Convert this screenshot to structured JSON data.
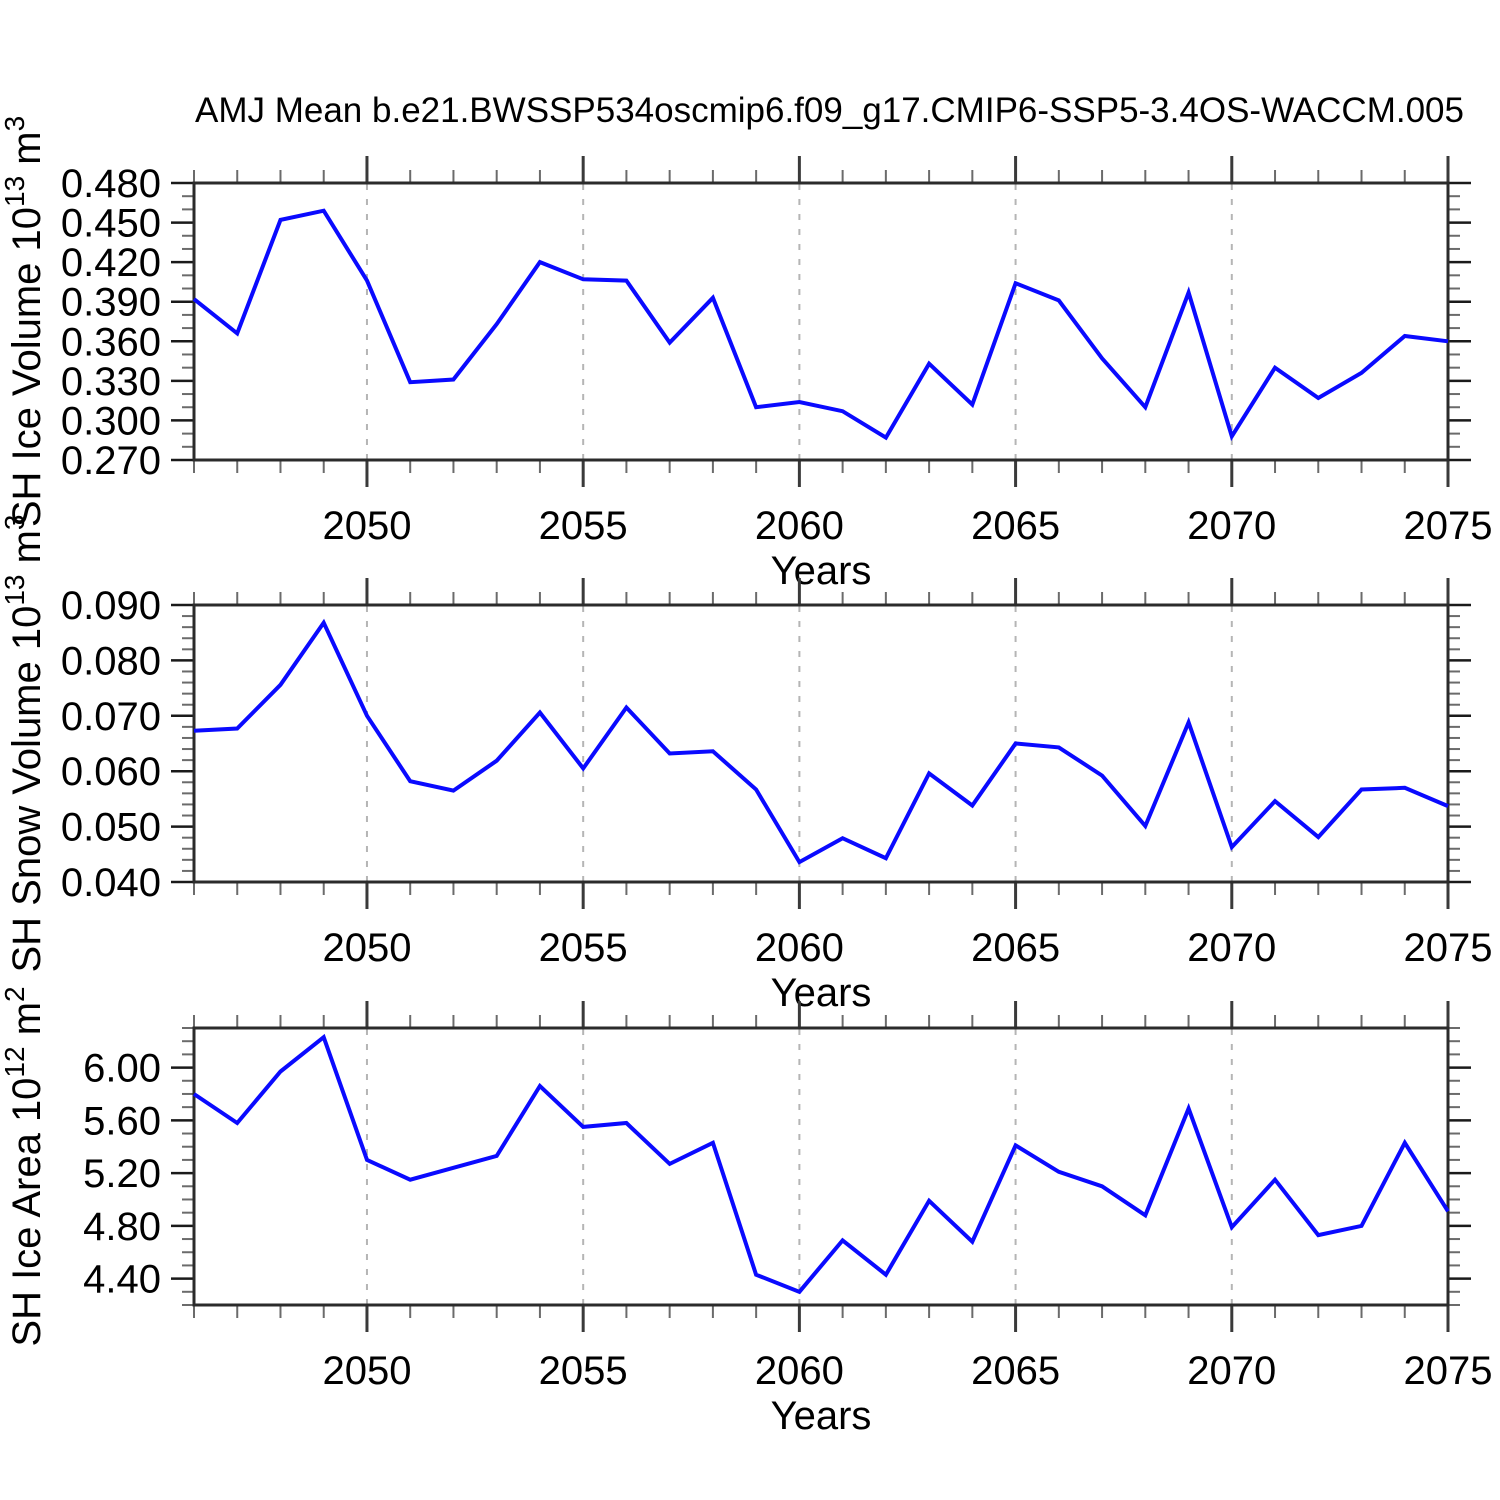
{
  "title": "AMJ Mean b.e21.BWSSP534oscmip6.f09_g17.CMIP6-SSP5-3.4OS-WACCM.005",
  "colors": {
    "line": "#0a0aff",
    "grid": "#b5b5b5",
    "axis": "#2b2b2b",
    "tick_major": "#3a3a3a",
    "tick_minor": "#6b6b6b",
    "text": "#000000"
  },
  "x_axis": {
    "label": "Years",
    "min": 2046,
    "max": 2075,
    "minor_step": 1,
    "major_ticks": [
      {
        "v": 2050,
        "label": "2050"
      },
      {
        "v": 2055,
        "label": "2055"
      },
      {
        "v": 2060,
        "label": "2060"
      },
      {
        "v": 2065,
        "label": "2065"
      },
      {
        "v": 2070,
        "label": "2070"
      },
      {
        "v": 2075,
        "label": "2075"
      }
    ]
  },
  "chart_data": [
    {
      "type": "line",
      "name": "sh-ice-volume",
      "ylabel": "SH Ice Volume 10^13 m^3",
      "ylabel_parts": [
        {
          "text": "SH Ice Volume 10",
          "sup": false
        },
        {
          "text": "13",
          "sup": true
        },
        {
          "text": " m",
          "sup": false
        },
        {
          "text": "3",
          "sup": true
        }
      ],
      "xlabel": "Years",
      "ylim": [
        0.27,
        0.48
      ],
      "y_major_ticks": [
        {
          "v": 0.27,
          "label": "0.270"
        },
        {
          "v": 0.3,
          "label": "0.300"
        },
        {
          "v": 0.33,
          "label": "0.330"
        },
        {
          "v": 0.36,
          "label": "0.360"
        },
        {
          "v": 0.39,
          "label": "0.390"
        },
        {
          "v": 0.42,
          "label": "0.420"
        },
        {
          "v": 0.45,
          "label": "0.450"
        },
        {
          "v": 0.48,
          "label": "0.480"
        }
      ],
      "y_minor_step": 0.01,
      "x": [
        2046,
        2047,
        2048,
        2049,
        2050,
        2051,
        2052,
        2053,
        2054,
        2055,
        2056,
        2057,
        2058,
        2059,
        2060,
        2061,
        2062,
        2063,
        2064,
        2065,
        2066,
        2067,
        2068,
        2069,
        2070,
        2071,
        2072,
        2073,
        2074,
        2075
      ],
      "values": [
        0.392,
        0.366,
        0.452,
        0.459,
        0.406,
        0.329,
        0.331,
        0.373,
        0.42,
        0.407,
        0.406,
        0.359,
        0.393,
        0.31,
        0.314,
        0.307,
        0.287,
        0.343,
        0.312,
        0.404,
        0.391,
        0.347,
        0.31,
        0.397,
        0.288,
        0.34,
        0.317,
        0.336,
        0.364,
        0.36
      ],
      "grid": "vertical-dashed",
      "legend": "none"
    },
    {
      "type": "line",
      "name": "sh-snow-volume",
      "ylabel": "SH Snow Volume 10^13 m^3",
      "ylabel_parts": [
        {
          "text": "SH Snow Volume 10",
          "sup": false
        },
        {
          "text": "13",
          "sup": true
        },
        {
          "text": " m",
          "sup": false
        },
        {
          "text": "3",
          "sup": true
        }
      ],
      "xlabel": "Years",
      "ylim": [
        0.04,
        0.09
      ],
      "y_major_ticks": [
        {
          "v": 0.04,
          "label": "0.040"
        },
        {
          "v": 0.05,
          "label": "0.050"
        },
        {
          "v": 0.06,
          "label": "0.060"
        },
        {
          "v": 0.07,
          "label": "0.070"
        },
        {
          "v": 0.08,
          "label": "0.080"
        },
        {
          "v": 0.09,
          "label": "0.090"
        }
      ],
      "y_minor_step": 0.002,
      "x": [
        2046,
        2047,
        2048,
        2049,
        2050,
        2051,
        2052,
        2053,
        2054,
        2055,
        2056,
        2057,
        2058,
        2059,
        2060,
        2061,
        2062,
        2063,
        2064,
        2065,
        2066,
        2067,
        2068,
        2069,
        2070,
        2071,
        2072,
        2073,
        2074,
        2075
      ],
      "values": [
        0.0673,
        0.0677,
        0.0756,
        0.0868,
        0.07,
        0.0582,
        0.0565,
        0.0619,
        0.0706,
        0.0605,
        0.0715,
        0.0632,
        0.0636,
        0.0567,
        0.0436,
        0.0479,
        0.0443,
        0.0596,
        0.0538,
        0.065,
        0.0643,
        0.0592,
        0.0501,
        0.0688,
        0.0463,
        0.0546,
        0.0481,
        0.0567,
        0.057,
        0.0537
      ],
      "grid": "vertical-dashed",
      "legend": "none"
    },
    {
      "type": "line",
      "name": "sh-ice-area",
      "ylabel": "SH Ice Area 10^12 m^2",
      "ylabel_parts": [
        {
          "text": "SH Ice Area 10",
          "sup": false
        },
        {
          "text": "12",
          "sup": true
        },
        {
          "text": " m",
          "sup": false
        },
        {
          "text": "2",
          "sup": true
        }
      ],
      "xlabel": "Years",
      "ylim": [
        4.2,
        6.3
      ],
      "y_major_ticks": [
        {
          "v": 4.4,
          "label": "4.40"
        },
        {
          "v": 4.8,
          "label": "4.80"
        },
        {
          "v": 5.2,
          "label": "5.20"
        },
        {
          "v": 5.6,
          "label": "5.60"
        },
        {
          "v": 6.0,
          "label": "6.00"
        }
      ],
      "y_minor_step": 0.1,
      "x": [
        2046,
        2047,
        2048,
        2049,
        2050,
        2051,
        2052,
        2053,
        2054,
        2055,
        2056,
        2057,
        2058,
        2059,
        2060,
        2061,
        2062,
        2063,
        2064,
        2065,
        2066,
        2067,
        2068,
        2069,
        2070,
        2071,
        2072,
        2073,
        2074,
        2075
      ],
      "values": [
        5.8,
        5.58,
        5.97,
        6.23,
        5.3,
        5.15,
        5.24,
        5.33,
        5.86,
        5.55,
        5.58,
        5.27,
        5.43,
        4.43,
        4.3,
        4.69,
        4.43,
        4.99,
        4.68,
        5.41,
        5.21,
        5.1,
        4.88,
        5.69,
        4.79,
        5.15,
        4.73,
        4.8,
        5.43,
        4.91
      ],
      "grid": "vertical-dashed",
      "legend": "none"
    }
  ]
}
